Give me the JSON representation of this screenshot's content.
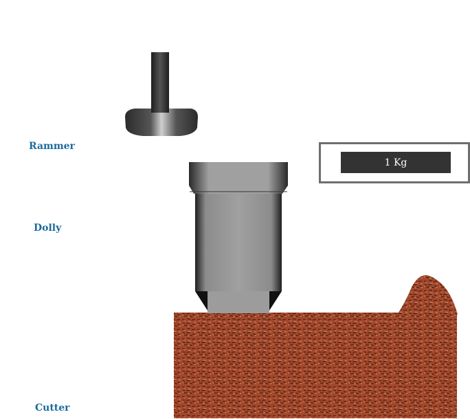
{
  "labels": {
    "rammer": "Rammer",
    "dolly": "Dolly",
    "cutter": "Cutter"
  },
  "weight": {
    "text": "1 Kg"
  },
  "colors": {
    "label_text": "#1c6b9c",
    "soil": "#a3472a",
    "metal_dark": "#2a2a2a",
    "metal_light": "#9a9a9a",
    "weight_bar": "#333333",
    "weight_frame": "#6e6e6e"
  }
}
